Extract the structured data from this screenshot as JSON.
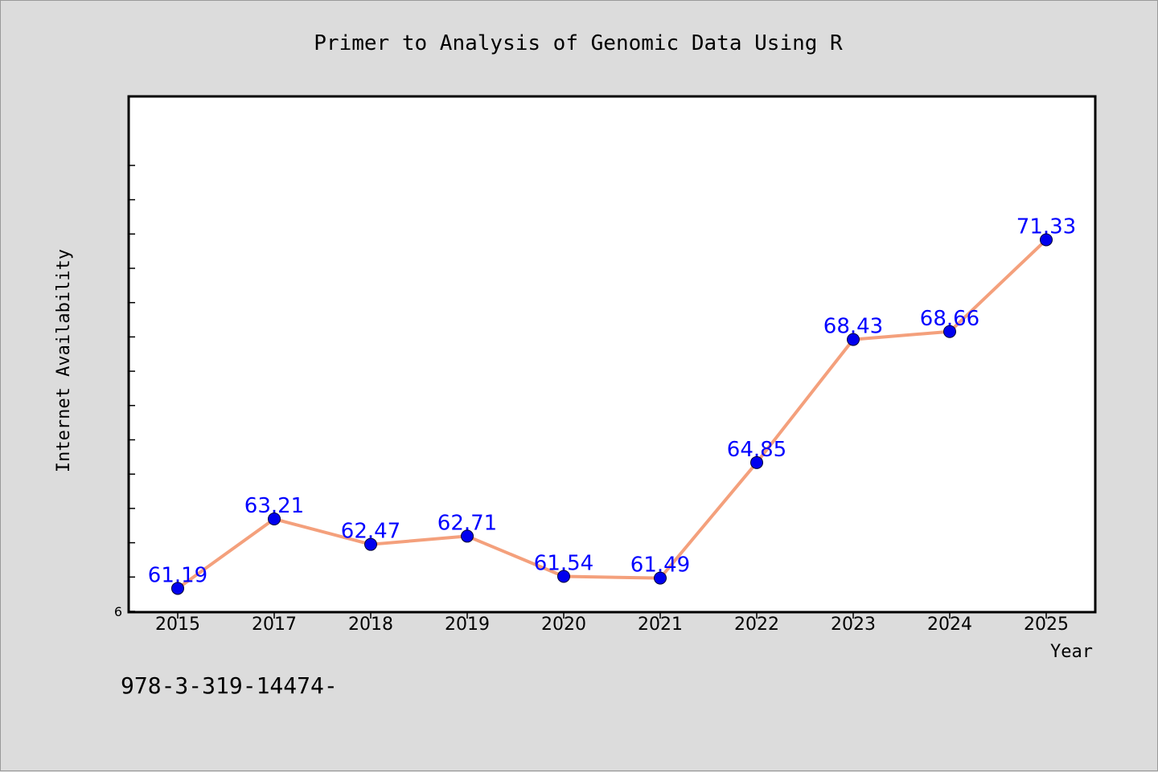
{
  "chart_data": {
    "type": "line",
    "title": "Primer to Analysis of Genomic Data Using R",
    "xlabel": "Year",
    "ylabel": "Internet Availability",
    "categories": [
      "2015",
      "2017",
      "2018",
      "2019",
      "2020",
      "2021",
      "2022",
      "2023",
      "2024",
      "2025"
    ],
    "series": [
      {
        "values": [
          61.19,
          63.21,
          62.47,
          62.71,
          61.54,
          61.49,
          64.85,
          68.43,
          68.66,
          71.33
        ],
        "labels": [
          "61.19",
          "63.21",
          "62.47",
          "62.71",
          "61.54",
          "61.49",
          "64.85",
          "68.43",
          "68.66",
          "71.33"
        ],
        "line_color": "#f4a07c",
        "marker_color": "#0000ee"
      }
    ],
    "ylim": [
      60.5,
      75.5
    ],
    "y_tick_label": "6",
    "grid": false,
    "legend": "none"
  },
  "footnote": "978-3-319-14474-",
  "colors": {
    "background": "#dcdcdc",
    "plot_background": "#ffffff",
    "data_label": "#0000ff"
  }
}
